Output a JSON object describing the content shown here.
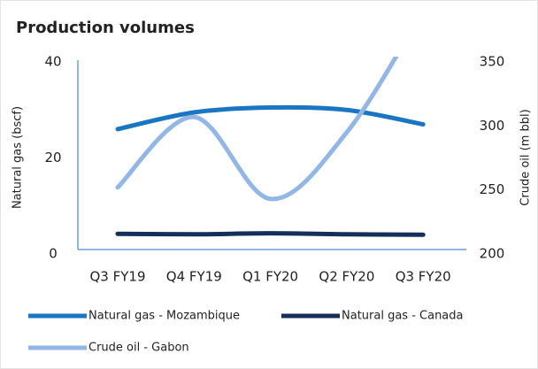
{
  "chart_data": {
    "type": "line",
    "title": "Production volumes",
    "y_label": "Natural gas (bscf)",
    "y2_label": "Crude oil (m bbl)",
    "categories": [
      "Q3 FY19",
      "Q4 FY19",
      "Q1 FY20",
      "Q2 FY20",
      "Q3 FY20"
    ],
    "series": [
      {
        "name": "Natural gas - Mozambique",
        "color": "#1a75c2",
        "values": [
          26,
          29.5,
          30.5,
          30,
          27
        ]
      },
      {
        "name": "Natural gas - Canada",
        "color": "#14305a",
        "values": [
          4.2,
          4.1,
          4.3,
          4.1,
          4
        ]
      },
      {
        "name": "Crude oil - Gabon",
        "color": "#92b6e6",
        "axis": "y2",
        "values": [
          252,
          307,
          243,
          295,
          390
        ]
      }
    ],
    "ylim": [
      0,
      40
    ],
    "yticks": [
      0,
      20,
      40
    ],
    "y2lim": [
      200,
      350
    ],
    "y2ticks": [
      200,
      250,
      300,
      350
    ],
    "legend": "bottom"
  }
}
